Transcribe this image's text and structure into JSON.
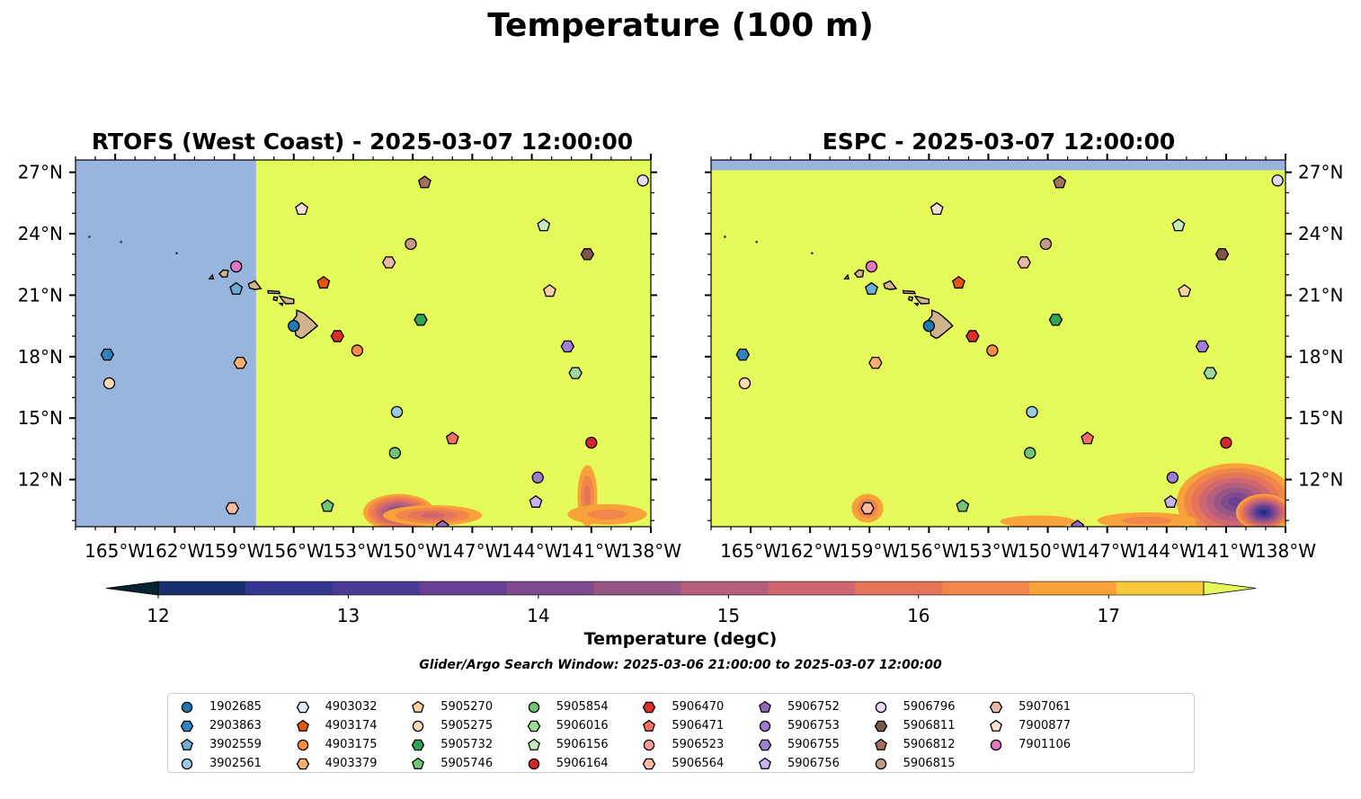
{
  "figure": {
    "suptitle": "Temperature (100 m)",
    "colorbar_label": "Temperature (degC)",
    "search_window": "Glider/Argo Search Window: 2025-03-06 21:00:00 to 2025-03-07 12:00:00"
  },
  "chart_data": {
    "type": "map",
    "colorbar": {
      "min": 12,
      "max": 17.5,
      "step": 0.5,
      "extend": "both",
      "ticks": [
        12,
        13,
        14,
        15,
        16,
        17
      ],
      "colors": [
        "#062332",
        "#18306e",
        "#343690",
        "#4b3a94",
        "#683f93",
        "#7f4b8c",
        "#985586",
        "#b65e7e",
        "#cf6770",
        "#e47559",
        "#f1864a",
        "#f9a23a",
        "#f9c83d",
        "#e5f95a"
      ],
      "land_color": "#d2b48c",
      "nodata_color": "#98b5de"
    },
    "extent": {
      "lon": [
        -167,
        -138
      ],
      "lat": [
        9.7,
        27.6
      ]
    },
    "x_ticks": [
      {
        "value": -165,
        "label": "165°W"
      },
      {
        "value": -162,
        "label": "162°W"
      },
      {
        "value": -159,
        "label": "159°W"
      },
      {
        "value": -156,
        "label": "156°W"
      },
      {
        "value": -153,
        "label": "153°W"
      },
      {
        "value": -150,
        "label": "150°W"
      },
      {
        "value": -147,
        "label": "147°W"
      },
      {
        "value": -144,
        "label": "144°W"
      },
      {
        "value": -141,
        "label": "141°W"
      },
      {
        "value": -138,
        "label": "138°W"
      }
    ],
    "y_ticks": [
      {
        "value": 12,
        "label": "12°N"
      },
      {
        "value": 15,
        "label": "15°N"
      },
      {
        "value": 18,
        "label": "18°N"
      },
      {
        "value": 21,
        "label": "21°N"
      },
      {
        "value": 24,
        "label": "24°N"
      },
      {
        "value": 27,
        "label": "27°N"
      }
    ],
    "panels": [
      {
        "id": "rtofs",
        "title": "RTOFS (West Coast) - 2025-03-07 12:00:00",
        "nodata_regions": [
          {
            "lon": [
              -167,
              -157.9
            ],
            "lat": [
              9.7,
              27.6
            ]
          }
        ],
        "cool_patches": [
          {
            "lon": -150.7,
            "lat": 10.4,
            "rx": 1.8,
            "ry": 0.9,
            "t": 13.5
          },
          {
            "lon": -149.0,
            "lat": 10.25,
            "rx": 2.5,
            "ry": 0.5,
            "t": 15.5
          },
          {
            "lon": -141.2,
            "lat": 11.2,
            "rx": 0.5,
            "ry": 1.5,
            "t": 16.4
          },
          {
            "lon": -140.2,
            "lat": 10.3,
            "rx": 2.0,
            "ry": 0.5,
            "t": 16.6
          }
        ]
      },
      {
        "id": "espc",
        "title": "ESPC - 2025-03-07 12:00:00",
        "nodata_regions": [
          {
            "lon": [
              -167,
              -138
            ],
            "lat": [
              27.1,
              27.6
            ]
          }
        ],
        "cool_patches": [
          {
            "lon": -159.1,
            "lat": 10.6,
            "rx": 0.8,
            "ry": 0.7,
            "t": 16.3
          },
          {
            "lon": -140.5,
            "lat": 10.9,
            "rx": 3.0,
            "ry": 1.9,
            "t": 13.6
          },
          {
            "lon": -139.1,
            "lat": 10.4,
            "rx": 1.4,
            "ry": 0.9,
            "t": 12.4
          },
          {
            "lon": -145.0,
            "lat": 10.0,
            "rx": 2.5,
            "ry": 0.4,
            "t": 16.8
          },
          {
            "lon": -150.5,
            "lat": 9.95,
            "rx": 1.9,
            "ry": 0.3,
            "t": 17.1
          }
        ]
      }
    ],
    "floats": [
      {
        "id": "1902685",
        "marker": "circle",
        "color": "#1f77b4",
        "lon": -156.0,
        "lat": 19.5
      },
      {
        "id": "2903863",
        "marker": "hexagon",
        "color": "#3182bd",
        "lon": -165.4,
        "lat": 18.1
      },
      {
        "id": "3902559",
        "marker": "pentagon",
        "color": "#6baed6",
        "lon": -158.9,
        "lat": 21.3
      },
      {
        "id": "3902561",
        "marker": "circle",
        "color": "#9ecae1",
        "lon": -150.8,
        "lat": 15.3
      },
      {
        "id": "4903032",
        "marker": "hexagon",
        "color": "#deebf7",
        "lon": -141.6,
        "lat": 7.5
      },
      {
        "id": "4903174",
        "marker": "pentagon",
        "color": "#e6550d",
        "lon": -154.5,
        "lat": 21.6
      },
      {
        "id": "4903175",
        "marker": "circle",
        "color": "#fd8d3c",
        "lon": -152.8,
        "lat": 18.3
      },
      {
        "id": "4903379",
        "marker": "hexagon",
        "color": "#fdae6b",
        "lon": -158.7,
        "lat": 17.7
      },
      {
        "id": "5905270",
        "marker": "pentagon",
        "color": "#fdd0a2",
        "lon": -143.1,
        "lat": 21.2
      },
      {
        "id": "5905275",
        "marker": "circle",
        "color": "#fdd9b5",
        "lon": -165.3,
        "lat": 16.7
      },
      {
        "id": "5905732",
        "marker": "hexagon",
        "color": "#31a354",
        "lon": -149.6,
        "lat": 19.8
      },
      {
        "id": "5905746",
        "marker": "pentagon",
        "color": "#74c476",
        "lon": -154.3,
        "lat": 10.7
      },
      {
        "id": "5905854",
        "marker": "circle",
        "color": "#74c476",
        "lon": -150.9,
        "lat": 13.3
      },
      {
        "id": "5906016",
        "marker": "hexagon",
        "color": "#a1d99b",
        "lon": -141.8,
        "lat": 17.2
      },
      {
        "id": "5906156",
        "marker": "pentagon",
        "color": "#c7e9c0",
        "lon": -143.4,
        "lat": 24.4
      },
      {
        "id": "5906164",
        "marker": "circle",
        "color": "#d62728",
        "lon": -141.0,
        "lat": 13.8
      },
      {
        "id": "5906470",
        "marker": "hexagon",
        "color": "#de2d26",
        "lon": -153.8,
        "lat": 19.0
      },
      {
        "id": "5906471",
        "marker": "pentagon",
        "color": "#f46d66",
        "lon": -148.0,
        "lat": 14.0
      },
      {
        "id": "5906523",
        "marker": "circle",
        "color": "#fc9b9b",
        "lon": -147.6,
        "lat": 5.5
      },
      {
        "id": "5906564",
        "marker": "hexagon",
        "color": "#fcbba1",
        "lon": -159.1,
        "lat": 10.6
      },
      {
        "id": "5906752",
        "marker": "pentagon",
        "color": "#9467bd",
        "lon": -148.5,
        "lat": 9.7
      },
      {
        "id": "5906753",
        "marker": "circle",
        "color": "#9e7bd0",
        "lon": -143.7,
        "lat": 12.1
      },
      {
        "id": "5906755",
        "marker": "hexagon",
        "color": "#a17ed6",
        "lon": -142.2,
        "lat": 18.5
      },
      {
        "id": "5906756",
        "marker": "pentagon",
        "color": "#cbb3f0",
        "lon": -143.8,
        "lat": 10.9
      },
      {
        "id": "5906796",
        "marker": "circle",
        "color": "#e6d8fb",
        "lon": -138.4,
        "lat": 26.6
      },
      {
        "id": "5906811",
        "marker": "hexagon",
        "color": "#7f5543",
        "lon": -141.2,
        "lat": 23.0
      },
      {
        "id": "5906812",
        "marker": "pentagon",
        "color": "#a0725e",
        "lon": -149.4,
        "lat": 26.5
      },
      {
        "id": "5906815",
        "marker": "circle",
        "color": "#c49a87",
        "lon": -150.1,
        "lat": 23.5
      },
      {
        "id": "5907061",
        "marker": "hexagon",
        "color": "#e7b8a5",
        "lon": -151.2,
        "lat": 22.6
      },
      {
        "id": "7900877",
        "marker": "pentagon",
        "color": "#fde0d4",
        "lon": -155.6,
        "lat": 25.2
      },
      {
        "id": "7901106",
        "marker": "circle",
        "color": "#e377c2",
        "lon": -158.9,
        "lat": 22.4
      }
    ]
  }
}
